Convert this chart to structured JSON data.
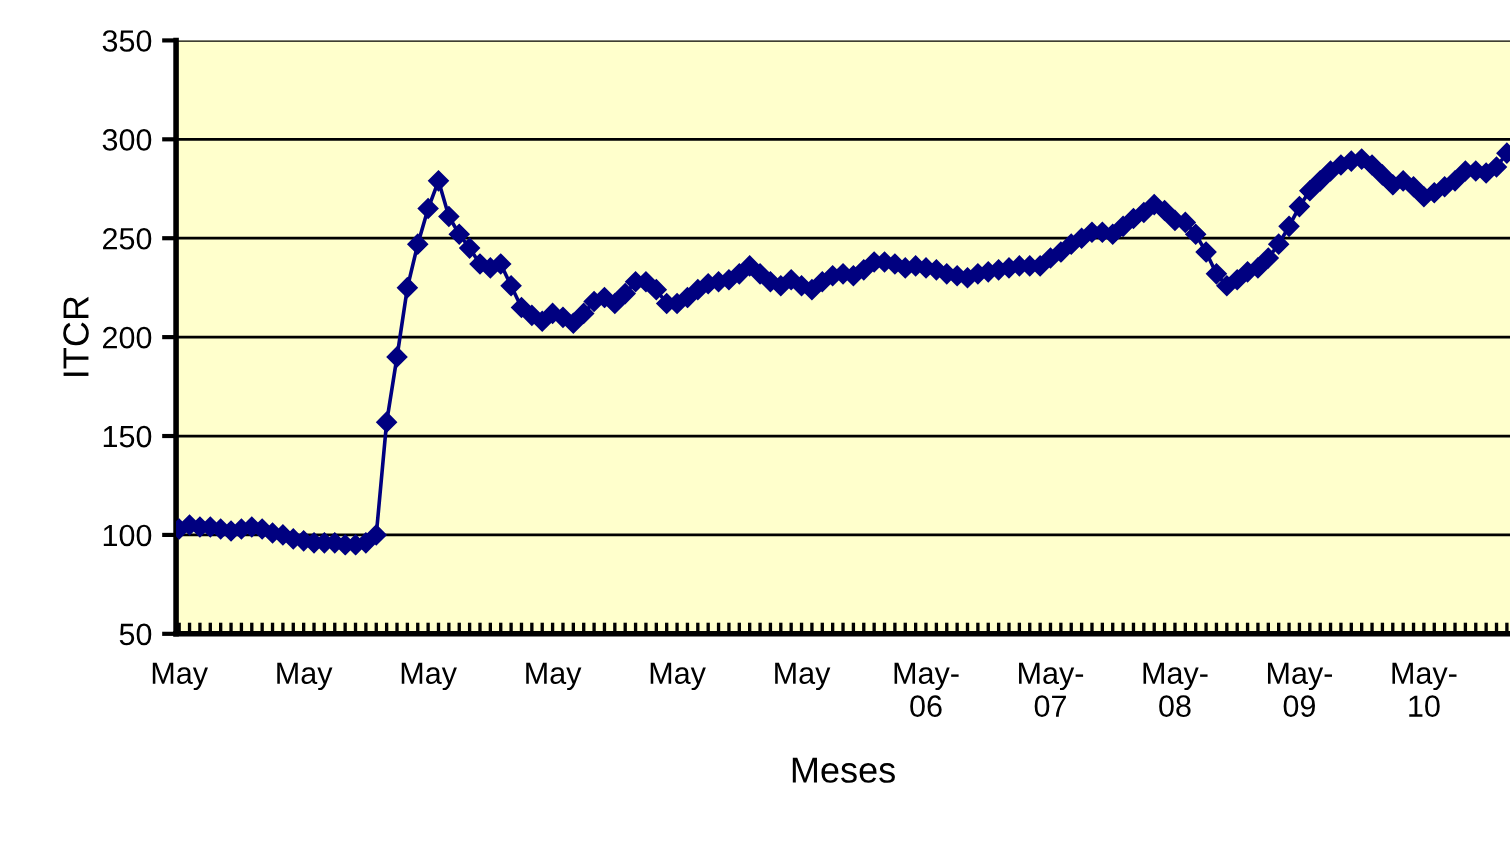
{
  "chart_data": {
    "type": "line",
    "xlabel": "Meses",
    "ylabel": "ITCR",
    "categories": [
      "May",
      null,
      null,
      null,
      null,
      null,
      null,
      null,
      null,
      null,
      null,
      null,
      "May",
      null,
      null,
      null,
      null,
      null,
      null,
      null,
      null,
      null,
      null,
      null,
      "May",
      null,
      null,
      null,
      null,
      null,
      null,
      null,
      null,
      null,
      null,
      null,
      "May",
      null,
      null,
      null,
      null,
      null,
      null,
      null,
      null,
      null,
      null,
      null,
      "May",
      null,
      null,
      null,
      null,
      null,
      null,
      null,
      null,
      null,
      null,
      null,
      "May",
      null,
      null,
      null,
      null,
      null,
      null,
      null,
      null,
      null,
      null,
      null,
      "May-\n06",
      null,
      null,
      null,
      null,
      null,
      null,
      null,
      null,
      null,
      null,
      null,
      "May-\n07",
      null,
      null,
      null,
      null,
      null,
      null,
      null,
      null,
      null,
      null,
      null,
      "May-\n08",
      null,
      null,
      null,
      null,
      null,
      null,
      null,
      null,
      null,
      null,
      null,
      "May-\n09",
      null,
      null,
      null,
      null,
      null,
      null,
      null,
      null,
      null,
      null,
      null,
      "May-\n10",
      null,
      null,
      null,
      null,
      null,
      null,
      null,
      null
    ],
    "series": [
      {
        "color": "#000080",
        "values": [
          103,
          105,
          104,
          104,
          103,
          102,
          103,
          104,
          103,
          101,
          100,
          98,
          97,
          96,
          96,
          96,
          95,
          95,
          96,
          100,
          157,
          190,
          225,
          247,
          265,
          279,
          261,
          252,
          245,
          237,
          235,
          237,
          226,
          215,
          211,
          208,
          212,
          210,
          207,
          212,
          218,
          220,
          217,
          222,
          228,
          228,
          224,
          217,
          217,
          220,
          224,
          227,
          228,
          229,
          232,
          236,
          232,
          228,
          226,
          229,
          226,
          224,
          228,
          231,
          232,
          231,
          234,
          238,
          238,
          237,
          235,
          236,
          235,
          234,
          232,
          231,
          230,
          232,
          233,
          234,
          235,
          236,
          236,
          236,
          240,
          243,
          247,
          250,
          253,
          253,
          252,
          256,
          260,
          263,
          267,
          264,
          259,
          258,
          252,
          243,
          232,
          226,
          229,
          233,
          235,
          240,
          247,
          256,
          266,
          274,
          279,
          284,
          287,
          289,
          290,
          287,
          282,
          277,
          279,
          276,
          271,
          273,
          276,
          279,
          284,
          284,
          283,
          286,
          293
        ]
      }
    ],
    "ylim": [
      50,
      350
    ],
    "yticks": [
      50,
      100,
      150,
      200,
      250,
      300,
      350
    ],
    "grid": "y",
    "marker": "diamond",
    "line_style": "solid"
  }
}
